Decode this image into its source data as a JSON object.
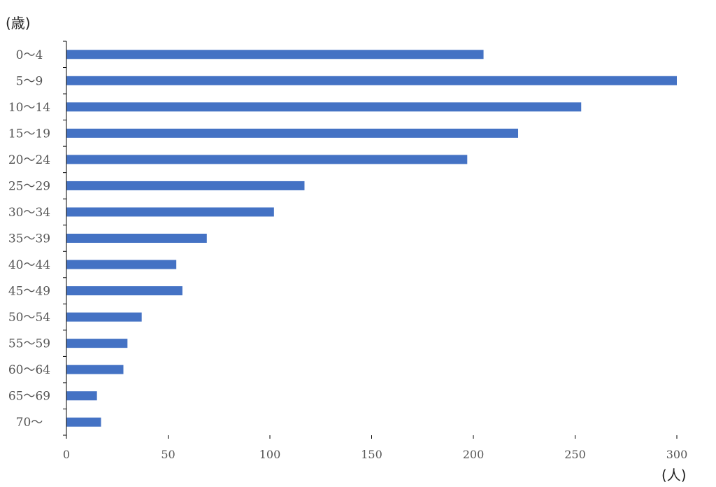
{
  "chart_data": {
    "type": "bar",
    "orientation": "horizontal",
    "y_unit_label": "(歳)",
    "x_unit_label": "(人)",
    "categories": [
      "0〜4",
      "5〜9",
      "10〜14",
      "15〜19",
      "20〜24",
      "25〜29",
      "30〜34",
      "35〜39",
      "40〜44",
      "45〜49",
      "50〜54",
      "55〜59",
      "60〜64",
      "65〜69",
      "70〜"
    ],
    "values": [
      205,
      300,
      253,
      222,
      197,
      117,
      102,
      69,
      54,
      57,
      37,
      30,
      28,
      15,
      17
    ],
    "xlim": [
      0,
      300
    ],
    "xticks": [
      0,
      50,
      100,
      150,
      200,
      250,
      300
    ],
    "grid": false,
    "legend": "none",
    "bar_color": "#4472C4"
  }
}
